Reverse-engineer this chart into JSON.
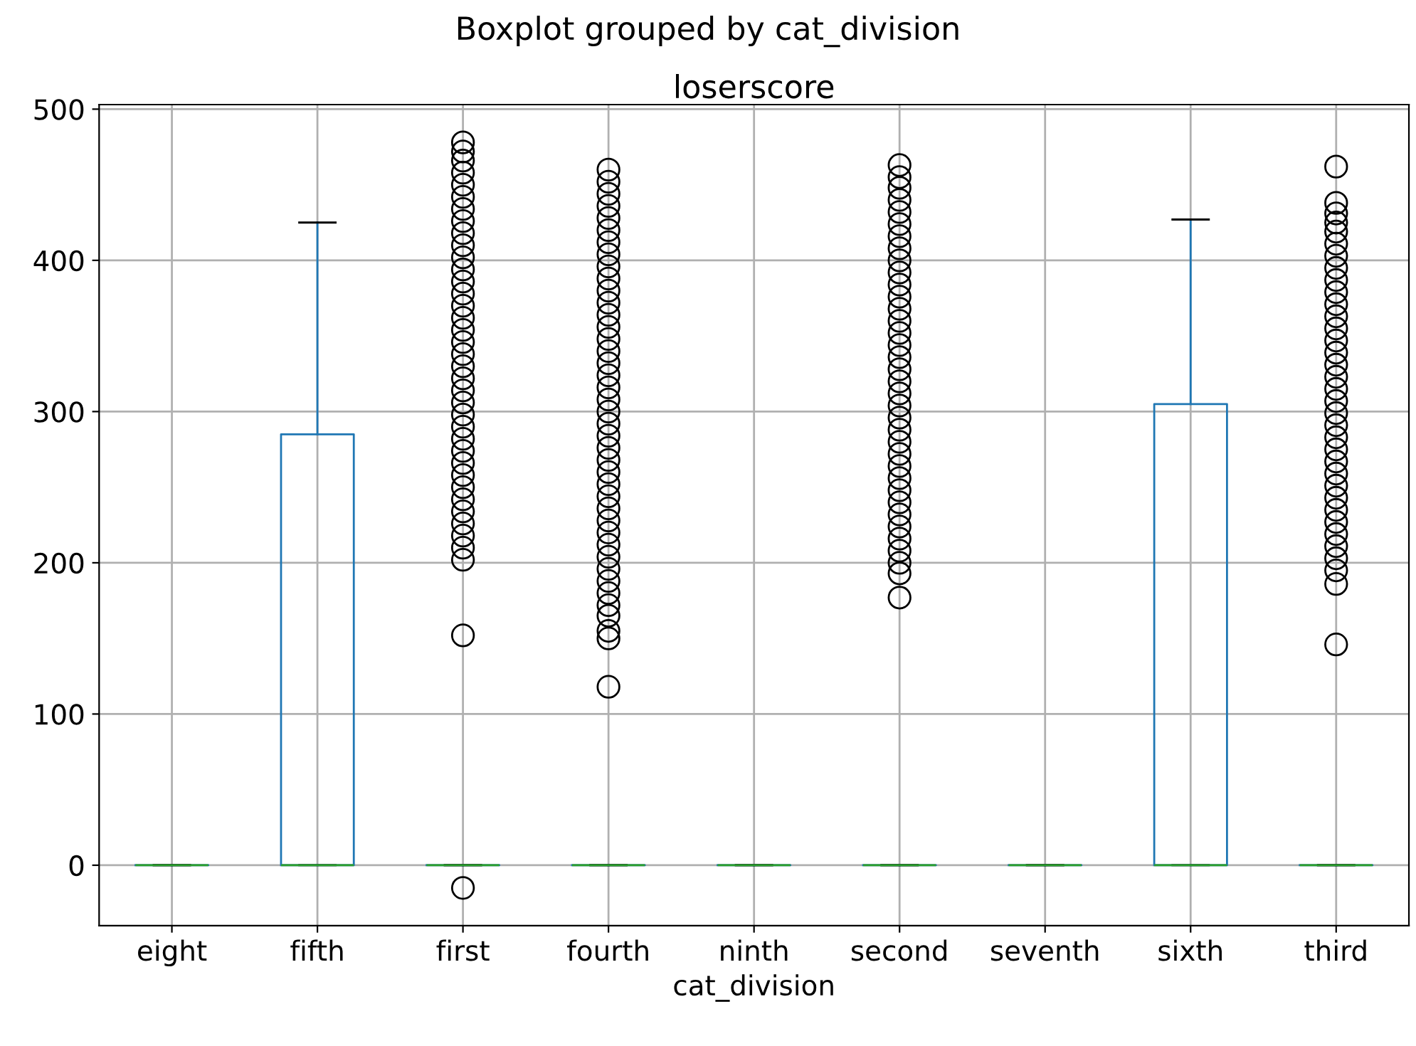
{
  "chart_data": {
    "type": "box",
    "title": "Boxplot grouped by cat_division",
    "subtitle": "loserscore",
    "xlabel": "cat_division",
    "categories": [
      "eight",
      "fifth",
      "first",
      "fourth",
      "ninth",
      "second",
      "seventh",
      "sixth",
      "third"
    ],
    "series": [
      {
        "color": "#1f77b4",
        "boxes": [
          {
            "low": 0,
            "q1": 0,
            "median": 0,
            "q3": 0,
            "high": 0
          },
          {
            "low": 0,
            "q1": 0,
            "median": 0,
            "q3": 285,
            "high": 425
          },
          {
            "low": 0,
            "q1": 0,
            "median": 0,
            "q3": 0,
            "high": 0,
            "outliers": [
              -15,
              152,
              202,
              210,
              218,
              226,
              234,
              242,
              250,
              258,
              266,
              274,
              282,
              290,
              298,
              306,
              314,
              322,
              330,
              338,
              346,
              354,
              362,
              370,
              378,
              386,
              394,
              402,
              410,
              418,
              426,
              434,
              442,
              450,
              458,
              466,
              472,
              478
            ]
          },
          {
            "low": 0,
            "q1": 0,
            "median": 0,
            "q3": 0,
            "high": 0,
            "outliers": [
              118,
              150,
              155,
              165,
              172,
              180,
              188,
              196,
              204,
              212,
              220,
              228,
              236,
              244,
              252,
              260,
              268,
              276,
              284,
              292,
              300,
              308,
              316,
              324,
              332,
              340,
              348,
              356,
              364,
              372,
              380,
              388,
              396,
              404,
              412,
              420,
              428,
              436,
              444,
              452,
              460
            ]
          },
          {
            "low": 0,
            "q1": 0,
            "median": 0,
            "q3": 0,
            "high": 0
          },
          {
            "low": 0,
            "q1": 0,
            "median": 0,
            "q3": 0,
            "high": 0,
            "outliers": [
              177,
              193,
              200,
              208,
              216,
              224,
              232,
              240,
              248,
              256,
              264,
              272,
              280,
              288,
              296,
              304,
              312,
              320,
              328,
              336,
              344,
              352,
              360,
              368,
              376,
              384,
              392,
              400,
              408,
              416,
              424,
              432,
              440,
              448,
              455,
              463
            ]
          },
          {
            "low": 0,
            "q1": 0,
            "median": 0,
            "q3": 0,
            "high": 0
          },
          {
            "low": 0,
            "q1": 0,
            "median": 0,
            "q3": 305,
            "high": 427
          },
          {
            "low": 0,
            "q1": 0,
            "median": 0,
            "q3": 0,
            "high": 0,
            "outliers": [
              146,
              186,
              195,
              203,
              211,
              219,
              227,
              235,
              243,
              251,
              259,
              267,
              275,
              283,
              291,
              299,
              307,
              315,
              323,
              331,
              339,
              347,
              355,
              363,
              371,
              379,
              387,
              395,
              403,
              411,
              419,
              425,
              431,
              438,
              462
            ]
          }
        ]
      }
    ],
    "ylim": [
      -40,
      503
    ],
    "yticks": [
      0,
      100,
      200,
      300,
      400,
      500
    ],
    "grid": true
  }
}
